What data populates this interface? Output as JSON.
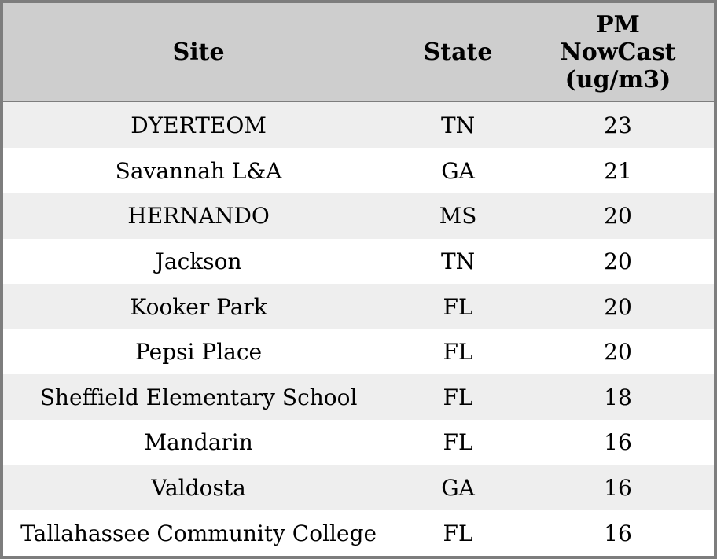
{
  "table": {
    "columns": [
      {
        "key": "site",
        "label": "Site"
      },
      {
        "key": "state",
        "label": "State"
      },
      {
        "key": "pm",
        "label": "PM NowCast (ug/m3)"
      }
    ],
    "rows": [
      {
        "site": "DYERTEOM",
        "state": "TN",
        "pm": "23"
      },
      {
        "site": "Savannah L&A",
        "state": "GA",
        "pm": "21"
      },
      {
        "site": "HERNANDO",
        "state": "MS",
        "pm": "20"
      },
      {
        "site": "Jackson",
        "state": "TN",
        "pm": "20"
      },
      {
        "site": "Kooker Park",
        "state": "FL",
        "pm": "20"
      },
      {
        "site": "Pepsi Place",
        "state": "FL",
        "pm": "20"
      },
      {
        "site": "Sheffield Elementary School",
        "state": "FL",
        "pm": "18"
      },
      {
        "site": "Mandarin",
        "state": "FL",
        "pm": "16"
      },
      {
        "site": "Valdosta",
        "state": "GA",
        "pm": "16"
      },
      {
        "site": "Tallahassee Community College",
        "state": "FL",
        "pm": "16"
      }
    ]
  },
  "colors": {
    "header_bg": "#cecece",
    "row_alt_bg": "#eeeeee",
    "row_bg": "#ffffff",
    "border": "#7d7d7d",
    "text": "#000000"
  },
  "chart_data": {
    "type": "table",
    "title": "",
    "columns": [
      "Site",
      "State",
      "PM NowCast (ug/m3)"
    ],
    "rows": [
      [
        "DYERTEOM",
        "TN",
        23
      ],
      [
        "Savannah L&A",
        "GA",
        21
      ],
      [
        "HERNANDO",
        "MS",
        20
      ],
      [
        "Jackson",
        "TN",
        20
      ],
      [
        "Kooker Park",
        "FL",
        20
      ],
      [
        "Pepsi Place",
        "FL",
        20
      ],
      [
        "Sheffield Elementary School",
        "FL",
        18
      ],
      [
        "Mandarin",
        "FL",
        16
      ],
      [
        "Valdosta",
        "GA",
        16
      ],
      [
        "Tallahassee Community College",
        "FL",
        16
      ]
    ],
    "layout_hints": {
      "striped_rows": true,
      "header_bold": true,
      "all_cells_centered": true
    }
  }
}
